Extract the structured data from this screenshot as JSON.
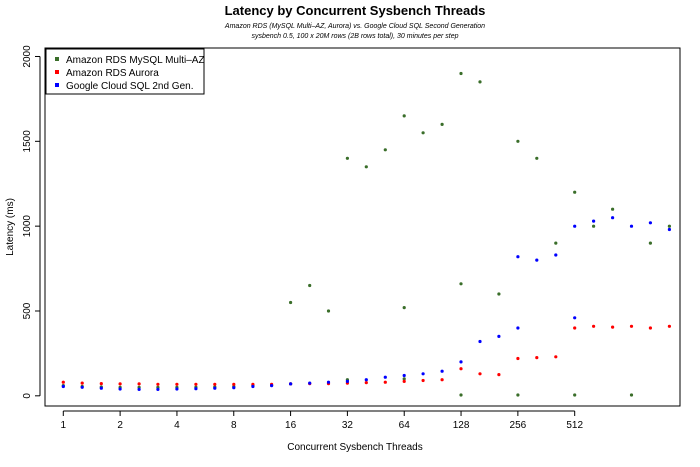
{
  "chart_data": {
    "type": "scatter",
    "title": "Latency by Concurrent Sysbench Threads",
    "subtitle_lines": [
      "Amazon RDS (MySQL Multi–AZ, Aurora) vs. Google Cloud SQL Second Generation",
      "sysbench 0.5, 100 x 20M rows (2B rows total), 30 minutes per step"
    ],
    "xlabel": "Concurrent Sysbench Threads",
    "ylabel": "Latency (ms)",
    "x_scale": "log2",
    "x_ticks": [
      1,
      2,
      4,
      8,
      16,
      32,
      64,
      128,
      256,
      512
    ],
    "x_tick_labels": [
      "1",
      "2",
      "4",
      "8",
      "16",
      "32",
      "64",
      "128",
      "256",
      "512"
    ],
    "xlim": [
      0.8,
      1850
    ],
    "ylim": [
      -60,
      2050
    ],
    "y_ticks": [
      0,
      500,
      1000,
      1500,
      2000
    ],
    "y_tick_labels": [
      "0",
      "500",
      "1000",
      "1500",
      "2000"
    ],
    "legend_position": "top-left",
    "series": [
      {
        "name": "Amazon RDS MySQL Multi–AZ",
        "color": "#3a6e2a",
        "points": [
          [
            1,
            60
          ],
          [
            1.26,
            55
          ],
          [
            1.59,
            52
          ],
          [
            2,
            50
          ],
          [
            2.52,
            50
          ],
          [
            3.17,
            50
          ],
          [
            4,
            50
          ],
          [
            5.04,
            51
          ],
          [
            6.35,
            52
          ],
          [
            8,
            55
          ],
          [
            10.1,
            60
          ],
          [
            12.7,
            62
          ],
          [
            16,
            70
          ],
          [
            16,
            550
          ],
          [
            20.2,
            650
          ],
          [
            25.4,
            500
          ],
          [
            32,
            95
          ],
          [
            32,
            1400
          ],
          [
            40.3,
            1350
          ],
          [
            50.8,
            1450
          ],
          [
            64,
            100
          ],
          [
            64,
            520
          ],
          [
            64,
            1650
          ],
          [
            80.6,
            1550
          ],
          [
            101.6,
            1600
          ],
          [
            128,
            5
          ],
          [
            128,
            1900
          ],
          [
            128,
            660
          ],
          [
            161.3,
            1850
          ],
          [
            203.2,
            600
          ],
          [
            256,
            5
          ],
          [
            256,
            1500
          ],
          [
            322.5,
            1400
          ],
          [
            406.4,
            900
          ],
          [
            512,
            5
          ],
          [
            512,
            1200
          ],
          [
            645,
            1000
          ],
          [
            812.7,
            1100
          ],
          [
            1024,
            5
          ],
          [
            1290,
            900
          ],
          [
            1625,
            1000
          ]
        ]
      },
      {
        "name": "Amazon RDS Aurora",
        "color": "#ff0000",
        "points": [
          [
            1,
            80
          ],
          [
            1.26,
            75
          ],
          [
            1.59,
            72
          ],
          [
            2,
            70
          ],
          [
            2.52,
            70
          ],
          [
            3.17,
            68
          ],
          [
            4,
            68
          ],
          [
            5.04,
            68
          ],
          [
            6.35,
            68
          ],
          [
            8,
            68
          ],
          [
            10.1,
            68
          ],
          [
            12.7,
            68
          ],
          [
            16,
            70
          ],
          [
            20.2,
            72
          ],
          [
            25.4,
            72
          ],
          [
            32,
            75
          ],
          [
            40.3,
            78
          ],
          [
            50.8,
            80
          ],
          [
            64,
            85
          ],
          [
            80.6,
            90
          ],
          [
            101.6,
            95
          ],
          [
            128,
            160
          ],
          [
            161.3,
            130
          ],
          [
            203.2,
            125
          ],
          [
            256,
            220
          ],
          [
            322.5,
            225
          ],
          [
            406.4,
            230
          ],
          [
            512,
            400
          ],
          [
            645,
            410
          ],
          [
            812.7,
            405
          ],
          [
            1024,
            410
          ],
          [
            1290,
            400
          ],
          [
            1625,
            410
          ]
        ]
      },
      {
        "name": "Google Cloud SQL 2nd Gen.",
        "color": "#0000ff",
        "points": [
          [
            1,
            55
          ],
          [
            1.26,
            50
          ],
          [
            1.59,
            45
          ],
          [
            2,
            40
          ],
          [
            2.52,
            38
          ],
          [
            3.17,
            38
          ],
          [
            4,
            40
          ],
          [
            5.04,
            42
          ],
          [
            6.35,
            45
          ],
          [
            8,
            48
          ],
          [
            10.1,
            55
          ],
          [
            12.7,
            60
          ],
          [
            16,
            70
          ],
          [
            20.2,
            75
          ],
          [
            25.4,
            80
          ],
          [
            32,
            85
          ],
          [
            40.3,
            95
          ],
          [
            50.8,
            110
          ],
          [
            64,
            120
          ],
          [
            80.6,
            130
          ],
          [
            101.6,
            145
          ],
          [
            128,
            200
          ],
          [
            161.3,
            320
          ],
          [
            203.2,
            350
          ],
          [
            256,
            400
          ],
          [
            256,
            820
          ],
          [
            322.5,
            800
          ],
          [
            406.4,
            830
          ],
          [
            512,
            460
          ],
          [
            512,
            1000
          ],
          [
            645,
            1030
          ],
          [
            812.7,
            1050
          ],
          [
            1024,
            1000
          ],
          [
            1290,
            1020
          ],
          [
            1625,
            980
          ]
        ]
      }
    ]
  }
}
